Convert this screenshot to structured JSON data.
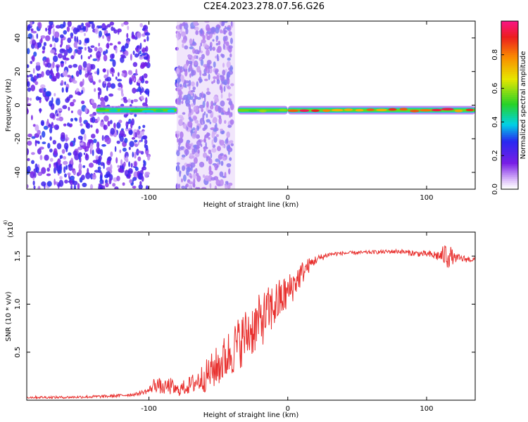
{
  "figure_title": "C2E4.2023.278.07.56.G26",
  "colors": {
    "snr_line": "#e8302e",
    "spectrum_noise": "#7a1fe0",
    "spectrum_high": "#e8171f"
  },
  "chart_data": [
    {
      "type": "heatmap",
      "title": "",
      "xlabel": "Height of straight line (km)",
      "ylabel": "Frequency (Hz)",
      "xlim": [
        -188,
        135
      ],
      "ylim": [
        -50,
        50
      ],
      "x_ticks": [
        -100,
        0,
        100
      ],
      "y_ticks": [
        -40,
        -20,
        0,
        20,
        40
      ],
      "colorbar": {
        "label": "Normalized spectral amplitude",
        "range": [
          0,
          1
        ],
        "ticks": [
          0.0,
          0.2,
          0.4,
          0.6,
          0.8
        ],
        "colormap": "rainbow (white → violet → blue → cyan → green → yellow → orange → red → magenta)"
      },
      "features": [
        {
          "x_range": [
            -188,
            -100
          ],
          "description": "scattered noise, amplitude 0.1–0.3"
        },
        {
          "x_range": [
            -138,
            -80
          ],
          "center_freq_hz": -3,
          "amplitude": 0.5
        },
        {
          "x_range": [
            -80,
            -40
          ],
          "description": "dense noise band, amplitude 0.1–0.3"
        },
        {
          "x_range": [
            -36,
            0
          ],
          "center_freq_hz": -3,
          "amplitude": 0.6
        },
        {
          "x_range": [
            0,
            135
          ],
          "center_freq_hz": -3,
          "amplitude": 0.95
        }
      ]
    },
    {
      "type": "line",
      "title": "",
      "xlabel": "Height of straight line (km)",
      "ylabel": "SNR (10 * v/v)",
      "y_multiplier_label": "(x10",
      "y_multiplier_exp": "4",
      "xlim": [
        -188,
        135
      ],
      "ylim": [
        0,
        1.75
      ],
      "x_ticks": [
        -100,
        0,
        100
      ],
      "y_ticks": [
        0.5,
        1.0,
        1.5
      ],
      "y_tick_labels": [
        "0.5",
        "1.0",
        "1.5"
      ],
      "series": [
        {
          "values_key": "x_km / snr_x1e4",
          "x_km": [
            -188,
            -160,
            -130,
            -110,
            -100,
            -95,
            -90,
            -85,
            -80,
            -70,
            -60,
            -50,
            -40,
            -30,
            -20,
            -10,
            0,
            5,
            10,
            15,
            20,
            30,
            40,
            60,
            80,
            90,
            100,
            110,
            115,
            120,
            135
          ],
          "snr_x1e4": [
            0.03,
            0.03,
            0.04,
            0.06,
            0.1,
            0.18,
            0.12,
            0.15,
            0.1,
            0.16,
            0.24,
            0.36,
            0.52,
            0.68,
            0.82,
            0.98,
            1.12,
            1.22,
            1.32,
            1.4,
            1.46,
            1.52,
            1.53,
            1.54,
            1.55,
            1.53,
            1.52,
            1.5,
            1.52,
            1.48,
            1.46
          ],
          "noise_amp": [
            0.008,
            0.008,
            0.01,
            0.01,
            0.02,
            0.06,
            0.04,
            0.06,
            0.04,
            0.06,
            0.1,
            0.14,
            0.17,
            0.18,
            0.18,
            0.16,
            0.12,
            0.1,
            0.08,
            0.05,
            0.03,
            0.015,
            0.012,
            0.012,
            0.015,
            0.02,
            0.02,
            0.04,
            0.1,
            0.03,
            0.015
          ]
        }
      ]
    }
  ]
}
